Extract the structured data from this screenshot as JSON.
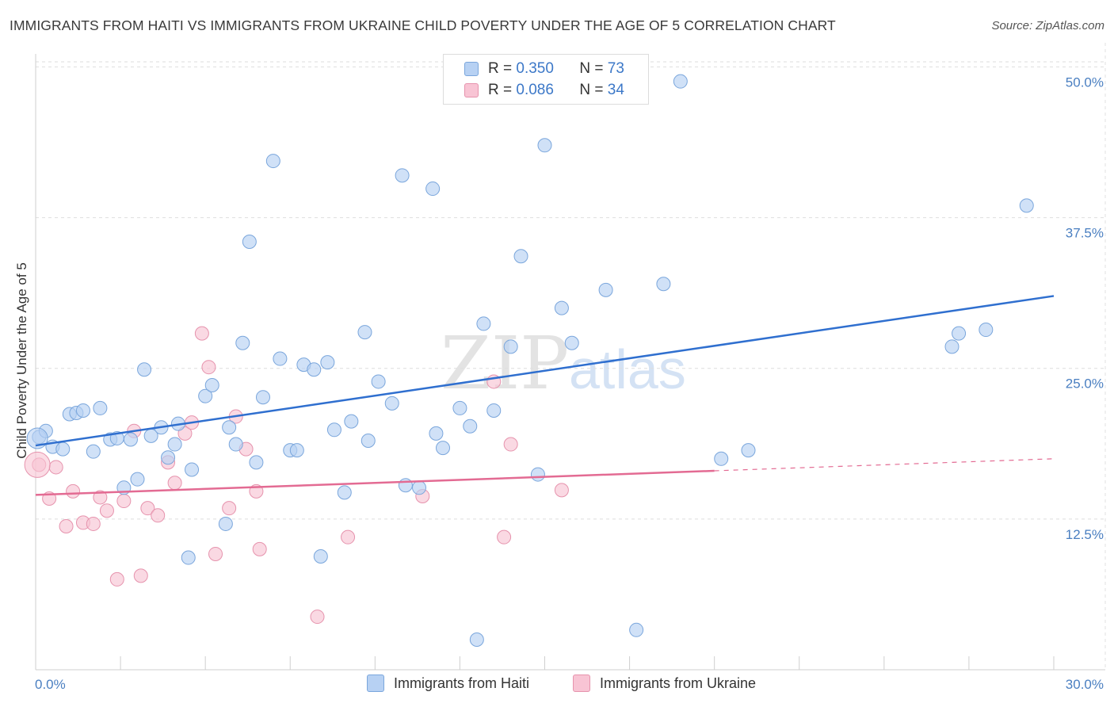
{
  "title": "IMMIGRANTS FROM HAITI VS IMMIGRANTS FROM UKRAINE CHILD POVERTY UNDER THE AGE OF 5 CORRELATION CHART",
  "source": "Source: ZipAtlas.com",
  "watermark": {
    "zip": "ZIP",
    "atlas": "atlas"
  },
  "legend": {
    "r_label": "R =",
    "n_label": "N =",
    "haiti": {
      "r": "0.350",
      "n": "73"
    },
    "ukraine": {
      "r": "0.086",
      "n": "34"
    }
  },
  "colors": {
    "haiti_fill": "#b7d1f3",
    "haiti_stroke": "#7aa6dc",
    "haiti_line": "#2f6fcf",
    "ukraine_fill": "#f8c4d4",
    "ukraine_stroke": "#e693ad",
    "ukraine_line": "#e36b93",
    "tick_text": "#4a7fc1"
  },
  "chart_data": {
    "type": "scatter",
    "title": "IMMIGRANTS FROM HAITI VS IMMIGRANTS FROM UKRAINE CHILD POVERTY UNDER THE AGE OF 5 CORRELATION CHART",
    "xlabel": "",
    "ylabel": "Child Poverty Under the Age of 5",
    "xlim": [
      0,
      30
    ],
    "ylim": [
      0,
      52
    ],
    "x_tick_labels": [
      "0.0%",
      "30.0%"
    ],
    "y_ticks": [
      12.5,
      25.0,
      37.5,
      50.0
    ],
    "y_tick_labels": [
      "12.5%",
      "25.0%",
      "37.5%",
      "50.0%"
    ],
    "grid": true,
    "legend_position": "top-center",
    "series": [
      {
        "name": "Immigrants from Haiti",
        "points": [
          [
            0.1,
            19.3
          ],
          [
            0.3,
            19.8
          ],
          [
            0.5,
            18.5
          ],
          [
            0.8,
            18.3
          ],
          [
            1.0,
            21.2
          ],
          [
            1.2,
            21.3
          ],
          [
            1.4,
            21.5
          ],
          [
            1.7,
            18.1
          ],
          [
            1.9,
            21.7
          ],
          [
            2.2,
            19.1
          ],
          [
            2.4,
            19.2
          ],
          [
            2.6,
            15.1
          ],
          [
            2.8,
            19.1
          ],
          [
            3.0,
            15.8
          ],
          [
            3.2,
            24.9
          ],
          [
            3.4,
            19.4
          ],
          [
            3.7,
            20.1
          ],
          [
            3.9,
            17.6
          ],
          [
            4.1,
            18.7
          ],
          [
            4.2,
            20.4
          ],
          [
            4.5,
            9.3
          ],
          [
            4.6,
            16.6
          ],
          [
            5.0,
            22.7
          ],
          [
            5.2,
            23.6
          ],
          [
            5.6,
            12.1
          ],
          [
            5.7,
            20.1
          ],
          [
            5.9,
            18.7
          ],
          [
            6.1,
            27.1
          ],
          [
            6.3,
            35.5
          ],
          [
            6.5,
            17.2
          ],
          [
            6.7,
            22.6
          ],
          [
            7.0,
            42.2
          ],
          [
            7.2,
            25.8
          ],
          [
            7.5,
            18.2
          ],
          [
            7.7,
            18.2
          ],
          [
            7.9,
            25.3
          ],
          [
            8.2,
            24.9
          ],
          [
            8.4,
            9.4
          ],
          [
            8.6,
            25.5
          ],
          [
            8.8,
            19.9
          ],
          [
            9.1,
            14.7
          ],
          [
            9.3,
            20.6
          ],
          [
            9.7,
            28.0
          ],
          [
            9.8,
            19.0
          ],
          [
            10.1,
            23.9
          ],
          [
            10.5,
            22.1
          ],
          [
            10.8,
            41.0
          ],
          [
            10.9,
            15.3
          ],
          [
            11.3,
            15.1
          ],
          [
            11.7,
            39.9
          ],
          [
            11.8,
            19.6
          ],
          [
            12.0,
            18.4
          ],
          [
            12.5,
            21.7
          ],
          [
            12.8,
            20.2
          ],
          [
            13.0,
            2.5
          ],
          [
            13.2,
            28.7
          ],
          [
            13.5,
            21.5
          ],
          [
            14.0,
            26.8
          ],
          [
            14.3,
            34.3
          ],
          [
            14.8,
            16.2
          ],
          [
            15.0,
            43.5
          ],
          [
            15.5,
            30.0
          ],
          [
            15.8,
            27.1
          ],
          [
            16.8,
            31.5
          ],
          [
            17.7,
            3.3
          ],
          [
            18.5,
            32.0
          ],
          [
            19.0,
            48.8
          ],
          [
            20.2,
            17.5
          ],
          [
            21.0,
            18.2
          ],
          [
            27.0,
            26.8
          ],
          [
            27.2,
            27.9
          ],
          [
            28.0,
            28.2
          ],
          [
            29.2,
            38.5
          ]
        ]
      },
      {
        "name": "Immigrants from Ukraine",
        "points": [
          [
            0.1,
            17.0
          ],
          [
            0.4,
            14.2
          ],
          [
            0.6,
            16.8
          ],
          [
            0.9,
            11.9
          ],
          [
            1.1,
            14.8
          ],
          [
            1.4,
            12.2
          ],
          [
            1.7,
            12.1
          ],
          [
            1.9,
            14.3
          ],
          [
            2.1,
            13.2
          ],
          [
            2.4,
            7.5
          ],
          [
            2.6,
            14.0
          ],
          [
            2.9,
            19.8
          ],
          [
            3.1,
            7.8
          ],
          [
            3.3,
            13.4
          ],
          [
            3.6,
            12.8
          ],
          [
            3.9,
            17.2
          ],
          [
            4.1,
            15.5
          ],
          [
            4.4,
            19.6
          ],
          [
            4.6,
            20.5
          ],
          [
            4.9,
            27.9
          ],
          [
            5.1,
            25.1
          ],
          [
            5.3,
            9.6
          ],
          [
            5.7,
            13.4
          ],
          [
            5.9,
            21.0
          ],
          [
            6.2,
            18.3
          ],
          [
            6.5,
            14.8
          ],
          [
            6.6,
            10.0
          ],
          [
            8.3,
            4.4
          ],
          [
            9.2,
            11.0
          ],
          [
            11.4,
            14.4
          ],
          [
            13.5,
            23.9
          ],
          [
            13.8,
            11.0
          ],
          [
            14.0,
            18.7
          ],
          [
            15.5,
            14.9
          ]
        ]
      }
    ],
    "trend_lines": [
      {
        "series": "Immigrants from Haiti",
        "x": [
          0,
          30
        ],
        "y": [
          18.6,
          31.0
        ],
        "style": "solid"
      },
      {
        "series": "Immigrants from Ukraine",
        "x": [
          0,
          20
        ],
        "y": [
          14.5,
          16.5
        ],
        "style": "solid"
      },
      {
        "series": "Immigrants from Ukraine",
        "x": [
          20,
          30
        ],
        "y": [
          16.5,
          17.5
        ],
        "style": "dashed"
      }
    ]
  }
}
